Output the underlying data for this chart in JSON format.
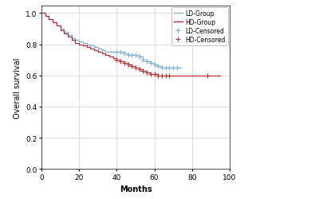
{
  "ld_times": [
    0,
    2,
    4,
    6,
    8,
    10,
    12,
    14,
    16,
    18,
    20,
    22,
    24,
    26,
    28,
    30,
    32,
    34,
    36,
    38,
    40,
    42,
    44,
    46,
    48,
    50,
    52,
    54,
    56,
    58,
    60,
    62,
    64,
    66,
    68,
    70,
    72,
    74
  ],
  "ld_survival": [
    1.0,
    0.98,
    0.96,
    0.94,
    0.92,
    0.9,
    0.88,
    0.86,
    0.84,
    0.83,
    0.82,
    0.81,
    0.8,
    0.79,
    0.78,
    0.77,
    0.76,
    0.75,
    0.75,
    0.75,
    0.75,
    0.75,
    0.74,
    0.73,
    0.73,
    0.73,
    0.72,
    0.7,
    0.69,
    0.68,
    0.67,
    0.66,
    0.65,
    0.65,
    0.65,
    0.65,
    0.65,
    0.65
  ],
  "ld_censored_times": [
    40,
    42,
    44,
    46,
    48,
    50,
    52,
    54,
    56,
    58,
    60,
    62,
    64,
    66,
    68,
    70,
    72
  ],
  "ld_censored_vals": [
    0.75,
    0.75,
    0.74,
    0.73,
    0.73,
    0.73,
    0.72,
    0.7,
    0.69,
    0.68,
    0.67,
    0.66,
    0.65,
    0.65,
    0.65,
    0.65,
    0.65
  ],
  "hd_times": [
    0,
    2,
    4,
    6,
    8,
    10,
    12,
    14,
    16,
    18,
    20,
    22,
    24,
    26,
    28,
    30,
    32,
    34,
    36,
    38,
    40,
    42,
    44,
    46,
    48,
    50,
    52,
    54,
    56,
    58,
    60,
    62,
    64,
    66,
    68,
    70,
    72,
    74,
    76,
    78,
    80,
    88,
    95
  ],
  "hd_survival": [
    1.0,
    0.98,
    0.96,
    0.94,
    0.92,
    0.89,
    0.87,
    0.85,
    0.83,
    0.81,
    0.8,
    0.79,
    0.78,
    0.77,
    0.76,
    0.75,
    0.74,
    0.73,
    0.72,
    0.71,
    0.7,
    0.69,
    0.68,
    0.67,
    0.66,
    0.65,
    0.64,
    0.63,
    0.62,
    0.61,
    0.61,
    0.6,
    0.6,
    0.6,
    0.6,
    0.6,
    0.6,
    0.6,
    0.6,
    0.6,
    0.6,
    0.6,
    0.6
  ],
  "hd_censored_times": [
    40,
    42,
    44,
    46,
    48,
    50,
    52,
    54,
    56,
    58,
    60,
    62,
    64,
    66,
    68,
    88
  ],
  "hd_censored_vals": [
    0.7,
    0.69,
    0.68,
    0.67,
    0.66,
    0.65,
    0.64,
    0.63,
    0.62,
    0.61,
    0.61,
    0.6,
    0.6,
    0.6,
    0.6,
    0.6
  ],
  "ld_color": "#7bafd4",
  "hd_color": "#b03030",
  "xlim": [
    0,
    100
  ],
  "ylim": [
    0.0,
    1.05
  ],
  "xlabel": "Months",
  "ylabel": "Overall survival",
  "xticks": [
    0,
    20,
    40,
    60,
    80,
    100
  ],
  "yticks": [
    0.0,
    0.2,
    0.4,
    0.6,
    0.8,
    1.0
  ],
  "grid_color": "#d0d0d0",
  "bg_color": "#ffffff",
  "legend_labels": [
    "LD-Group",
    "HD-Group",
    "LD-Censored",
    "HD-Censored"
  ]
}
